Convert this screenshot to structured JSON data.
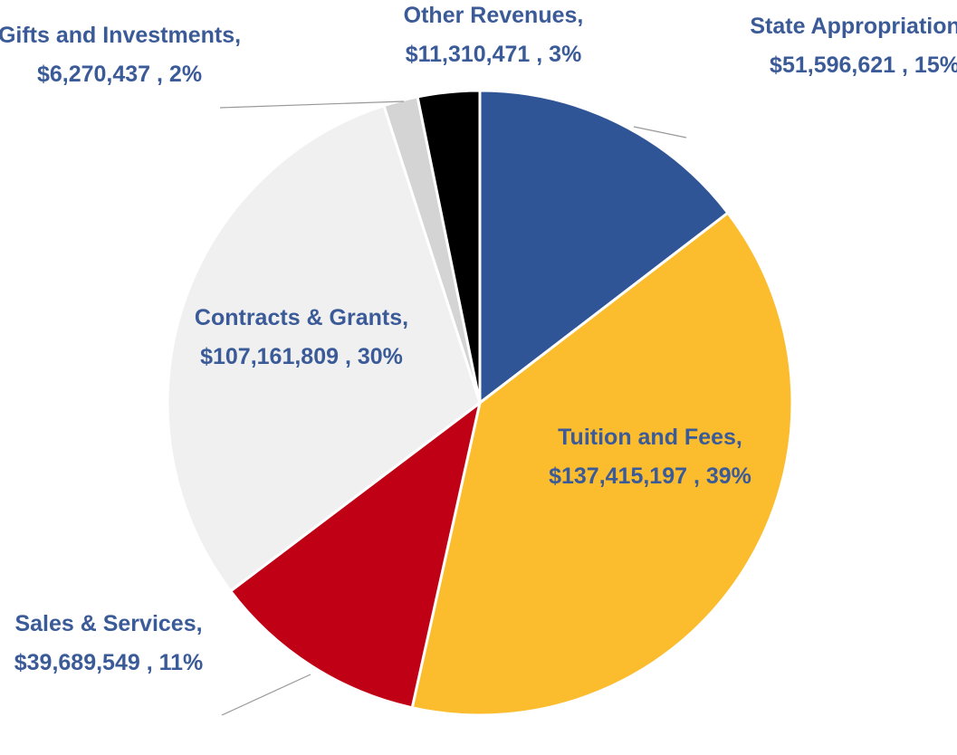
{
  "chart_data": {
    "type": "pie",
    "categories": [
      "State Appropriations,",
      "Tuition and Fees,",
      "Sales & Services,",
      "Contracts & Grants,",
      "Gifts and Investments,",
      "Other Revenues,"
    ],
    "values": [
      51596621,
      137415197,
      39689549,
      107161809,
      6270437,
      11310471
    ],
    "value_labels": [
      "$51,596,621 , 15%",
      "$137,415,197 , 39%",
      "$39,689,549 , 11%",
      "$107,161,809 , 30%",
      "$6,270,437 , 2%",
      "$11,310,471 , 3%"
    ],
    "colors": [
      "#2f5597",
      "#fbbc2d",
      "#c00014",
      "#f0f0f0",
      "#d4d4d4",
      "#000000"
    ]
  }
}
